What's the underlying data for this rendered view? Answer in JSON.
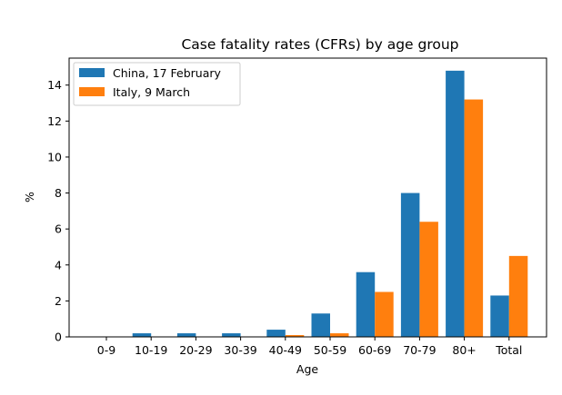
{
  "chart_data": {
    "type": "bar",
    "title": "Case fatality rates (CFRs) by age group",
    "xlabel": "Age",
    "ylabel": "%",
    "categories": [
      "0-9",
      "10-19",
      "20-29",
      "30-39",
      "40-49",
      "50-59",
      "60-69",
      "70-79",
      "80+",
      "Total"
    ],
    "series": [
      {
        "name": "China, 17 February",
        "color": "#1f77b4",
        "values": [
          0,
          0.2,
          0.2,
          0.2,
          0.4,
          1.3,
          3.6,
          8.0,
          14.8,
          2.3
        ]
      },
      {
        "name": "Italy, 9 March",
        "color": "#ff7f0e",
        "values": [
          0,
          0,
          0,
          0,
          0.1,
          0.2,
          2.5,
          6.4,
          13.2,
          4.5
        ]
      }
    ],
    "yticks": [
      0,
      2,
      4,
      6,
      8,
      10,
      12,
      14
    ],
    "ylim": [
      0,
      15.5
    ],
    "grid": false,
    "legend_position": "top-left"
  }
}
